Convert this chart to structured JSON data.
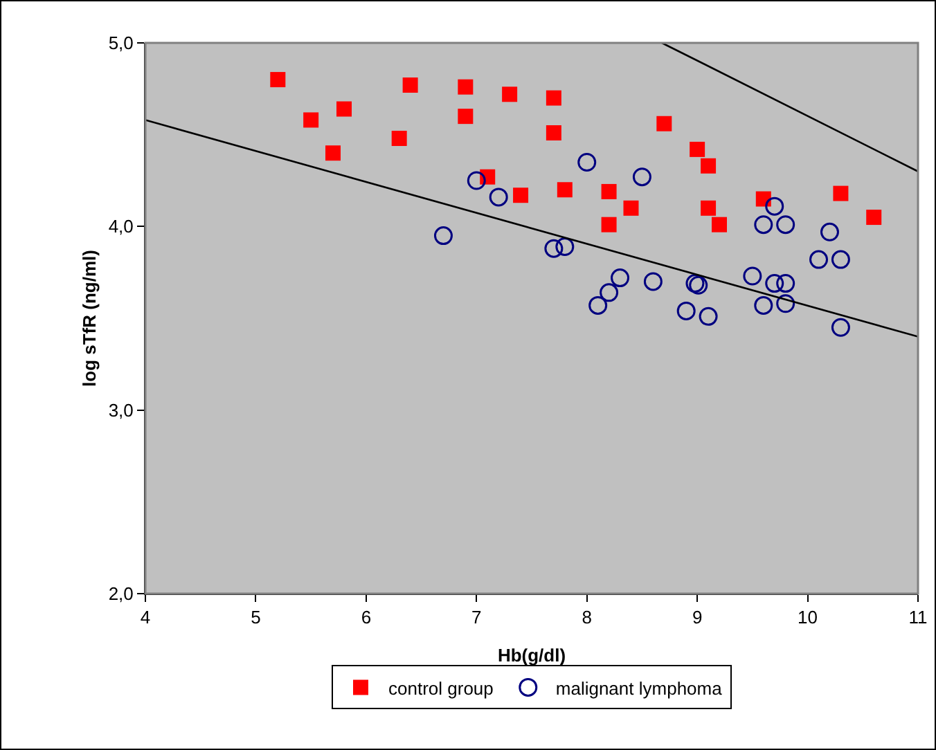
{
  "chart_data": {
    "type": "scatter",
    "xlabel": "Hb(g/dl)",
    "ylabel": "log sTfR (ng/ml)",
    "xlim": [
      4,
      11
    ],
    "xticks": [
      4,
      5,
      6,
      7,
      8,
      9,
      10,
      11
    ],
    "ylim": [
      2,
      5
    ],
    "yticks": [
      {
        "value": 2,
        "label": "2,0"
      },
      {
        "value": 3,
        "label": "3,0"
      },
      {
        "value": 4,
        "label": "4,0"
      },
      {
        "value": 5,
        "label": "5,0"
      }
    ],
    "grid": false,
    "legend": "bottom",
    "series": [
      {
        "name": "control group",
        "color": "#ff0000",
        "marker": "square",
        "x": [
          5.2,
          5.5,
          5.8,
          5.7,
          6.3,
          6.4,
          6.9,
          6.9,
          7.3,
          7.7,
          7.7,
          7.1,
          7.4,
          7.8,
          8.2,
          8.2,
          8.4,
          8.7,
          9.0,
          9.1,
          9.1,
          9.2,
          9.6,
          10.3,
          10.6
        ],
        "values": [
          4.8,
          4.58,
          4.64,
          4.4,
          4.48,
          4.77,
          4.76,
          4.6,
          4.72,
          4.7,
          4.51,
          4.27,
          4.17,
          4.2,
          4.19,
          4.01,
          4.1,
          4.56,
          4.42,
          4.33,
          4.1,
          4.01,
          4.15,
          4.18,
          4.05
        ]
      },
      {
        "name": "malignant lymphoma",
        "color": "#000080",
        "marker": "circle",
        "x": [
          6.7,
          7.0,
          7.2,
          7.7,
          7.8,
          8.0,
          8.5,
          8.1,
          8.2,
          8.3,
          8.6,
          8.9,
          8.98,
          9.01,
          9.1,
          9.5,
          9.6,
          9.7,
          9.8,
          9.8,
          9.6,
          9.7,
          9.8,
          10.1,
          10.2,
          10.3,
          10.3
        ],
        "values": [
          3.95,
          4.25,
          4.16,
          3.88,
          3.89,
          4.35,
          4.27,
          3.57,
          3.64,
          3.72,
          3.7,
          3.54,
          3.69,
          3.68,
          3.51,
          3.73,
          3.57,
          3.69,
          3.69,
          3.58,
          4.01,
          4.11,
          4.01,
          3.82,
          3.97,
          3.82,
          3.45
        ]
      },
      {
        "type": "line",
        "color": "#000000",
        "marker": "none",
        "x": [
          4,
          11
        ],
        "values": [
          4.58,
          3.4
        ]
      },
      {
        "type": "line",
        "color": "#000000",
        "marker": "none",
        "x": [
          8.68,
          11
        ],
        "values": [
          5.0,
          4.3
        ]
      }
    ]
  }
}
